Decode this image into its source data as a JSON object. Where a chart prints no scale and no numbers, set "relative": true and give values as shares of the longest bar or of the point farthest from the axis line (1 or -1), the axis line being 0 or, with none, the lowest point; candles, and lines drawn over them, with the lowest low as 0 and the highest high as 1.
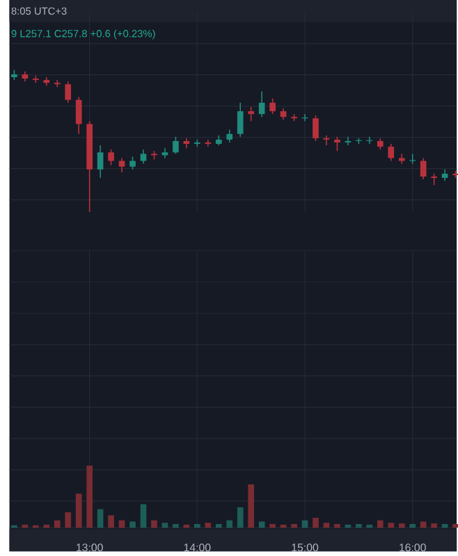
{
  "chart_data": [
    {
      "type": "candlestick",
      "relative": true,
      "grid": true,
      "tick_labels": false,
      "annotations": [
        "8:05 UTC+3",
        "9 L257.1 C257.8 +0.6 (+0.23%)"
      ],
      "x": [
        12.3,
        12.4,
        12.5,
        12.6,
        12.7,
        12.8,
        12.9,
        13.0,
        13.1,
        13.2,
        13.3,
        13.4,
        13.5,
        13.6,
        13.7,
        13.8,
        13.9,
        14.0,
        14.1,
        14.2,
        14.3,
        14.4,
        14.5,
        14.6,
        14.7,
        14.8,
        14.9,
        15.0,
        15.1,
        15.2,
        15.3,
        15.4,
        15.5,
        15.6,
        15.7,
        15.8,
        15.9,
        16.0,
        16.1,
        16.2,
        16.3,
        16.4
      ],
      "xlim": [
        12.256,
        16.41
      ],
      "xticks": [
        13,
        14,
        15,
        16
      ],
      "ohlc": [
        [
          0.95,
          1.0,
          0.93,
          0.97
        ],
        [
          0.97,
          0.99,
          0.92,
          0.94
        ],
        [
          0.94,
          0.96,
          0.91,
          0.93
        ],
        [
          0.93,
          0.95,
          0.89,
          0.91
        ],
        [
          0.91,
          0.93,
          0.88,
          0.9
        ],
        [
          0.9,
          0.92,
          0.77,
          0.79
        ],
        [
          0.79,
          0.81,
          0.55,
          0.62
        ],
        [
          0.62,
          0.64,
          0,
          0.3
        ],
        [
          0.3,
          0.47,
          0.24,
          0.42
        ],
        [
          0.42,
          0.44,
          0.33,
          0.36
        ],
        [
          0.36,
          0.38,
          0.28,
          0.32
        ],
        [
          0.32,
          0.39,
          0.3,
          0.36
        ],
        [
          0.36,
          0.44,
          0.34,
          0.41
        ],
        [
          0.41,
          0.43,
          0.37,
          0.4
        ],
        [
          0.4,
          0.45,
          0.38,
          0.42
        ],
        [
          0.42,
          0.53,
          0.41,
          0.5
        ],
        [
          0.5,
          0.52,
          0.45,
          0.48
        ],
        [
          0.48,
          0.51,
          0.46,
          0.49
        ],
        [
          0.49,
          0.51,
          0.46,
          0.48
        ],
        [
          0.48,
          0.54,
          0.47,
          0.51
        ],
        [
          0.51,
          0.58,
          0.49,
          0.55
        ],
        [
          0.55,
          0.77,
          0.53,
          0.71
        ],
        [
          0.71,
          0.74,
          0.64,
          0.69
        ],
        [
          0.69,
          0.85,
          0.67,
          0.77
        ],
        [
          0.77,
          0.8,
          0.69,
          0.71
        ],
        [
          0.71,
          0.73,
          0.65,
          0.67
        ],
        [
          0.67,
          0.69,
          0.64,
          0.66
        ],
        [
          0.66,
          0.69,
          0.64,
          0.66
        ],
        [
          0.66,
          0.68,
          0.5,
          0.52
        ],
        [
          0.52,
          0.54,
          0.47,
          0.51
        ],
        [
          0.51,
          0.53,
          0.43,
          0.49
        ],
        [
          0.49,
          0.53,
          0.47,
          0.5
        ],
        [
          0.5,
          0.52,
          0.48,
          0.5
        ],
        [
          0.5,
          0.53,
          0.48,
          0.5
        ],
        [
          0.5,
          0.52,
          0.44,
          0.46
        ],
        [
          0.46,
          0.48,
          0.36,
          0.38
        ],
        [
          0.38,
          0.41,
          0.34,
          0.36
        ],
        [
          0.36,
          0.41,
          0.34,
          0.36
        ],
        [
          0.36,
          0.38,
          0.23,
          0.25
        ],
        [
          0.25,
          0.27,
          0.19,
          0.24
        ],
        [
          0.24,
          0.3,
          0.22,
          0.27
        ],
        [
          0.27,
          0.29,
          0.24,
          0.26
        ]
      ],
      "colors": [
        "#1f8c7e",
        "#b8323d",
        "#b8323d",
        "#b8323d",
        "#b8323d",
        "#b8323d",
        "#b8323d",
        "#b8323d",
        "#1f8c7e",
        "#b8323d",
        "#b8323d",
        "#1f8c7e",
        "#1f8c7e",
        "#b8323d",
        "#1f8c7e",
        "#1f8c7e",
        "#b8323d",
        "#1f8c7e",
        "#b8323d",
        "#1f8c7e",
        "#1f8c7e",
        "#1f8c7e",
        "#b8323d",
        "#1f8c7e",
        "#b8323d",
        "#b8323d",
        "#b8323d",
        "#1f8c7e",
        "#b8323d",
        "#b8323d",
        "#b8323d",
        "#1f8c7e",
        "#1f8c7e",
        "#1f8c7e",
        "#b8323d",
        "#b8323d",
        "#b8323d",
        "#1f8c7e",
        "#b8323d",
        "#b8323d",
        "#1f8c7e",
        "#b8323d"
      ]
    },
    {
      "type": "bar",
      "relative": true,
      "grid": true,
      "x": [
        12.3,
        12.4,
        12.5,
        12.6,
        12.7,
        12.8,
        12.9,
        13.0,
        13.1,
        13.2,
        13.3,
        13.4,
        13.5,
        13.6,
        13.7,
        13.8,
        13.9,
        14.0,
        14.1,
        14.2,
        14.3,
        14.4,
        14.5,
        14.6,
        14.7,
        14.8,
        14.9,
        15.0,
        15.1,
        15.2,
        15.3,
        15.4,
        15.5,
        15.6,
        15.7,
        15.8,
        15.9,
        16.0,
        16.1,
        16.2,
        16.3,
        16.4
      ],
      "xlim": [
        12.256,
        16.41
      ],
      "xticks": [
        {
          "value": 13,
          "label": "13:00"
        },
        {
          "value": 14,
          "label": "14:00"
        },
        {
          "value": 15,
          "label": "15:00"
        },
        {
          "value": 16,
          "label": "16:00"
        }
      ],
      "values": [
        0.04,
        0.05,
        0.04,
        0.05,
        0.12,
        0.25,
        0.55,
        1,
        0.3,
        0.2,
        0.12,
        0.1,
        0.38,
        0.12,
        0.08,
        0.06,
        0.05,
        0.06,
        0.08,
        0.06,
        0.12,
        0.33,
        0.7,
        0.1,
        0.06,
        0.05,
        0.06,
        0.12,
        0.16,
        0.08,
        0.06,
        0.05,
        0.06,
        0.05,
        0.12,
        0.08,
        0.07,
        0.06,
        0.1,
        0.07,
        0.06,
        0.06
      ],
      "colors": [
        "#1d5e58",
        "#7a2c33",
        "#7a2c33",
        "#7a2c33",
        "#7a2c33",
        "#7a2c33",
        "#7a2c33",
        "#7a2c33",
        "#1d5e58",
        "#7a2c33",
        "#7a2c33",
        "#1d5e58",
        "#1d5e58",
        "#7a2c33",
        "#1d5e58",
        "#1d5e58",
        "#7a2c33",
        "#1d5e58",
        "#7a2c33",
        "#1d5e58",
        "#1d5e58",
        "#1d5e58",
        "#7a2c33",
        "#1d5e58",
        "#7a2c33",
        "#7a2c33",
        "#7a2c33",
        "#1d5e58",
        "#7a2c33",
        "#7a2c33",
        "#7a2c33",
        "#1d5e58",
        "#1d5e58",
        "#1d5e58",
        "#7a2c33",
        "#7a2c33",
        "#7a2c33",
        "#1d5e58",
        "#7a2c33",
        "#7a2c33",
        "#1d5e58",
        "#7a2c33"
      ]
    }
  ]
}
